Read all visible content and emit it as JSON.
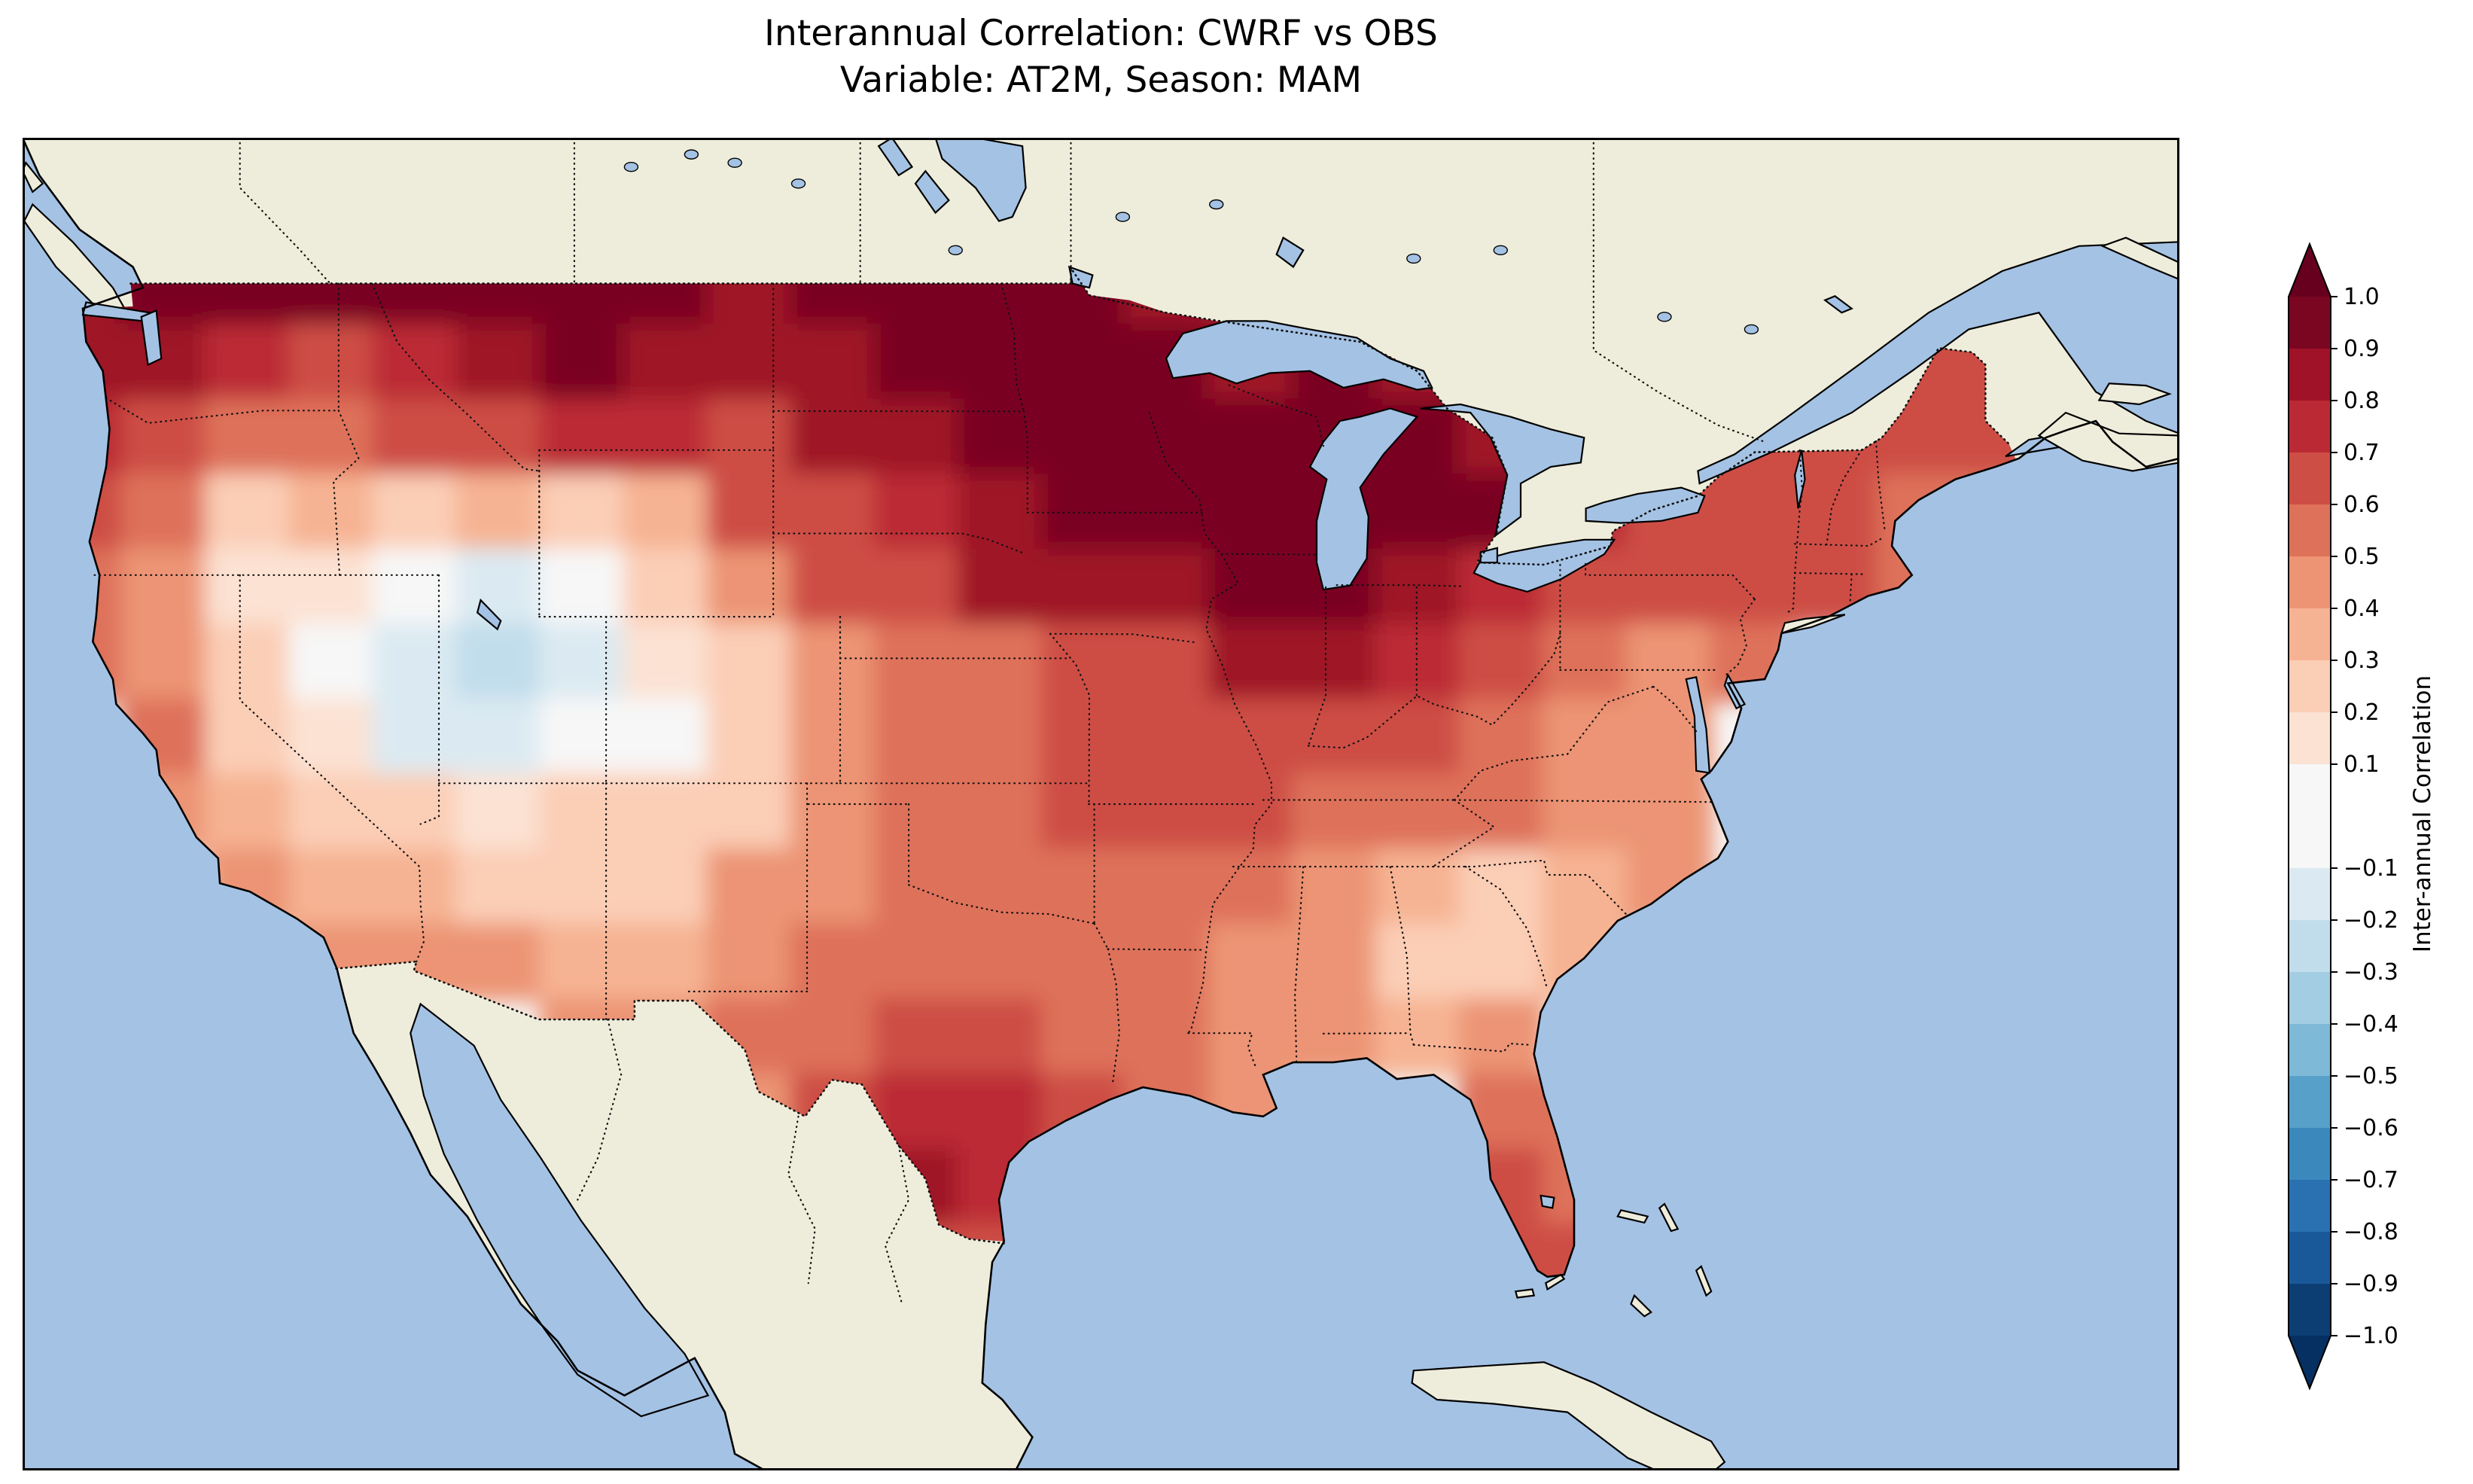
{
  "titles": {
    "line1": "Interannual Correlation: CWRF vs OBS",
    "line2": "Variable: AT2M, Season: MAM"
  },
  "colors": {
    "ocean": "#a4c2e4",
    "land": "#eeeddb",
    "coastline": "#000000",
    "border_dots": "#111111",
    "anchors": [
      "#053061",
      "#2166ac",
      "#4393c3",
      "#92c5de",
      "#d1e5f0",
      "#f7f7f7",
      "#fddbc7",
      "#f4a582",
      "#d6604d",
      "#b2182b",
      "#67001f"
    ]
  },
  "chart_data": {
    "type": "heatmap",
    "title": "Interannual Correlation: CWRF vs OBS",
    "subtitle": "Variable: AT2M, Season: MAM",
    "variable": "AT2M",
    "season": "MAM",
    "region": "Continental United States",
    "colorbar": {
      "label": "Inter-annual Correlation",
      "ticks": [
        "1.0",
        "0.9",
        "0.8",
        "0.7",
        "0.6",
        "0.5",
        "0.4",
        "0.3",
        "0.2",
        "0.1",
        "−0.1",
        "−0.2",
        "−0.3",
        "−0.4",
        "−0.5",
        "−0.6",
        "−0.7",
        "−0.8",
        "−0.9",
        "−1.0"
      ],
      "levels": [
        -1.0,
        -0.9,
        -0.8,
        -0.7,
        -0.6,
        -0.5,
        -0.4,
        -0.3,
        -0.2,
        -0.1,
        0.1,
        0.2,
        0.3,
        0.4,
        0.5,
        0.6,
        0.7,
        0.8,
        0.9,
        1.0
      ],
      "extend": "both",
      "orientation": "vertical",
      "position": "right"
    },
    "map": {
      "extent_lon": [
        -126.5,
        -62.0
      ],
      "extent_lat": [
        20.5,
        52.5
      ],
      "projection": "PlateCarree"
    },
    "grid": {
      "description": "Approximate interannual correlation field over CONUS read from the contour map; null = outside plotted US domain",
      "lon_start": -124.75,
      "lon_step": 2.5,
      "lat_start": 48.9,
      "lat_step": -1.8,
      "ncols": 24,
      "nrows": 14,
      "values": [
        [
          0.85,
          0.9,
          0.9,
          0.9,
          0.9,
          0.95,
          0.9,
          0.9,
          0.85,
          0.9,
          0.9,
          0.9,
          0.9,
          0.85,
          0.8,
          0.8,
          0.75,
          0.7,
          0.6,
          0.6,
          0.7,
          0.6,
          0.7,
          0.75
        ],
        [
          0.8,
          0.85,
          0.75,
          0.7,
          0.75,
          0.85,
          0.9,
          0.85,
          0.8,
          0.85,
          0.9,
          0.95,
          0.95,
          0.9,
          0.85,
          0.9,
          0.85,
          0.75,
          0.6,
          0.55,
          0.65,
          0.6,
          0.65,
          0.7
        ],
        [
          0.75,
          0.7,
          0.55,
          0.55,
          0.6,
          0.7,
          0.75,
          0.75,
          0.7,
          0.8,
          0.85,
          0.9,
          0.95,
          0.95,
          0.95,
          0.95,
          0.9,
          0.85,
          0.7,
          0.7,
          0.7,
          0.6,
          0.6,
          0.65
        ],
        [
          0.65,
          0.5,
          0.3,
          0.35,
          0.3,
          0.35,
          0.25,
          0.35,
          0.6,
          0.7,
          0.75,
          0.85,
          0.9,
          0.9,
          0.9,
          0.95,
          0.95,
          0.9,
          0.75,
          0.7,
          0.65,
          0.6,
          0.55,
          0.5
        ],
        [
          0.55,
          0.45,
          0.15,
          0.1,
          0.05,
          -0.1,
          0.05,
          0.2,
          0.45,
          0.6,
          0.7,
          0.8,
          0.85,
          0.85,
          0.9,
          0.9,
          0.85,
          0.75,
          0.7,
          0.65,
          0.6,
          0.6,
          0.5,
          null
        ],
        [
          0.5,
          0.4,
          0.2,
          0.05,
          -0.15,
          -0.2,
          -0.1,
          0.1,
          0.25,
          0.4,
          0.5,
          0.55,
          0.65,
          0.7,
          0.8,
          0.8,
          0.75,
          0.6,
          0.55,
          0.45,
          0.5,
          null,
          null,
          null
        ],
        [
          null,
          0.5,
          0.3,
          0.1,
          -0.1,
          -0.15,
          -0.05,
          0.05,
          0.2,
          0.45,
          0.5,
          0.55,
          0.7,
          0.7,
          0.7,
          0.65,
          0.6,
          0.5,
          0.45,
          0.4,
          null,
          null,
          null,
          null
        ],
        [
          null,
          0.45,
          0.35,
          0.2,
          0.25,
          0.15,
          0.2,
          0.25,
          0.3,
          0.4,
          0.5,
          0.55,
          0.6,
          0.6,
          0.6,
          0.55,
          0.5,
          0.5,
          0.45,
          0.4,
          null,
          null,
          null,
          null
        ],
        [
          null,
          null,
          0.45,
          0.35,
          0.35,
          0.3,
          0.3,
          0.3,
          0.4,
          0.45,
          0.5,
          0.5,
          0.55,
          0.5,
          0.5,
          0.45,
          0.35,
          0.3,
          0.35,
          0.4,
          null,
          null,
          null,
          null
        ],
        [
          null,
          null,
          null,
          0.4,
          0.45,
          0.4,
          0.35,
          0.35,
          0.45,
          0.5,
          0.55,
          0.55,
          0.5,
          0.5,
          0.45,
          0.4,
          0.25,
          0.3,
          0.35,
          null,
          null,
          null,
          null,
          null
        ],
        [
          null,
          null,
          null,
          null,
          null,
          null,
          0.45,
          0.45,
          0.5,
          0.55,
          0.65,
          0.7,
          0.55,
          0.5,
          0.45,
          0.45,
          0.35,
          0.4,
          null,
          null,
          null,
          null,
          null,
          null
        ],
        [
          null,
          null,
          null,
          null,
          null,
          null,
          null,
          null,
          0.45,
          0.6,
          0.75,
          0.75,
          0.6,
          0.5,
          0.45,
          null,
          null,
          0.5,
          0.55,
          null,
          null,
          null,
          null,
          null
        ],
        [
          null,
          null,
          null,
          null,
          null,
          null,
          null,
          null,
          null,
          null,
          0.8,
          0.75,
          null,
          null,
          null,
          null,
          null,
          0.6,
          0.55,
          null,
          null,
          null,
          null,
          null
        ],
        [
          null,
          null,
          null,
          null,
          null,
          null,
          null,
          null,
          null,
          null,
          0.7,
          0.7,
          null,
          null,
          null,
          null,
          null,
          0.65,
          0.6,
          null,
          null,
          null,
          null,
          null
        ]
      ]
    }
  }
}
